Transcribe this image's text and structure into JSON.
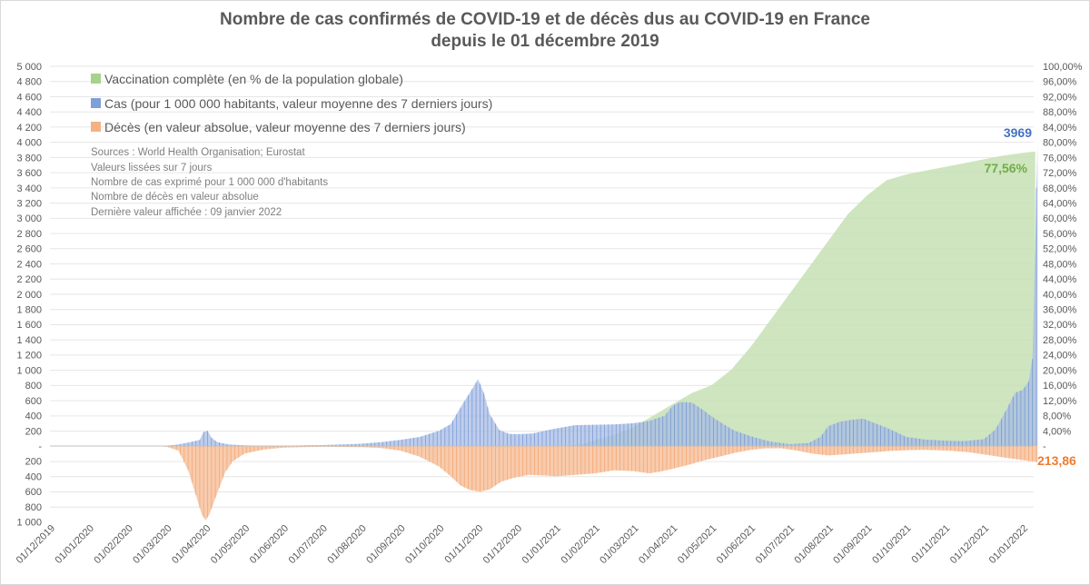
{
  "title": {
    "line1": "Nombre de cas confirmés de COVID-19 et de décès dus au COVID-19 en France",
    "line2": "depuis le 01 décembre 2019"
  },
  "legend": [
    {
      "label": "Vaccination complète (en % de la population globale)",
      "color": "#a9d18e"
    },
    {
      "label": "Cas (pour 1 000 000 habitants, valeur moyenne des 7 derniers jours)",
      "color": "#7f9fd9"
    },
    {
      "label": "Décès (en valeur absolue, valeur moyenne des 7 derniers jours)",
      "color": "#f4b183"
    }
  ],
  "notes": [
    "Sources : World Health Organisation; Eurostat",
    "Valeurs lissées sur 7 jours",
    "Nombre de cas exprimé pour 1 000 000 d'habitants",
    "Nombre de décès en valeur absolue",
    "Dernière valeur affichée : 09 janvier 2022"
  ],
  "last_values": {
    "cases": "3969",
    "vaccination": "77,56%",
    "deaths": "213,86"
  },
  "colors": {
    "vaccination_fill": "#c5e0b4",
    "cases_fill": "#a8bce6",
    "cases_line": "#4472c4",
    "deaths_fill": "#f8cbad",
    "deaths_line": "#ed7d31",
    "cases_label": "#4472c4",
    "vacc_label": "#70ad47",
    "deaths_label": "#ed7d31"
  },
  "chart_data": {
    "type": "area",
    "title": "Nombre de cas confirmés de COVID-19 et de décès dus au COVID-19 en France depuis le 01 décembre 2019",
    "x_labels": [
      "01/12/2019",
      "01/01/2020",
      "01/02/2020",
      "01/03/2020",
      "01/04/2020",
      "01/05/2020",
      "01/06/2020",
      "01/07/2020",
      "01/08/2020",
      "01/09/2020",
      "01/10/2020",
      "01/11/2020",
      "01/12/2020",
      "01/01/2021",
      "01/02/2021",
      "01/03/2021",
      "01/04/2021",
      "01/05/2021",
      "01/06/2021",
      "01/07/2021",
      "01/08/2021",
      "01/09/2021",
      "01/10/2021",
      "01/11/2021",
      "01/12/2021",
      "01/01/2022"
    ],
    "left_axis": {
      "positive_ticks": [
        "5 000",
        "4 800",
        "4 600",
        "4 400",
        "4 200",
        "4 000",
        "3 800",
        "3 600",
        "3 400",
        "3 200",
        "3 000",
        "2 800",
        "2 600",
        "2 400",
        "2 200",
        "2 000",
        "1 800",
        "1 600",
        "1 400",
        "1 200",
        "1 000",
        "800",
        "600",
        "400",
        "200",
        "-"
      ],
      "negative_ticks": [
        "200",
        "400",
        "600",
        "800",
        "1 000"
      ],
      "range": [
        -1000,
        5000
      ]
    },
    "right_axis": {
      "ticks": [
        "100,00%",
        "96,00%",
        "92,00%",
        "88,00%",
        "84,00%",
        "80,00%",
        "76,00%",
        "72,00%",
        "68,00%",
        "64,00%",
        "60,00%",
        "56,00%",
        "52,00%",
        "48,00%",
        "44,00%",
        "40,00%",
        "36,00%",
        "32,00%",
        "28,00%",
        "24,00%",
        "20,00%",
        "16,00%",
        "12,00%",
        "8,00%",
        "4,00%",
        "-"
      ],
      "range": [
        0,
        100
      ]
    },
    "series": [
      {
        "name": "Vaccination complète (en % de la population globale)",
        "axis": "right",
        "points": [
          [
            13.3,
            0
          ],
          [
            13.7,
            0.5
          ],
          [
            14.0,
            1.5
          ],
          [
            14.5,
            3
          ],
          [
            15.0,
            5
          ],
          [
            15.5,
            8
          ],
          [
            16.0,
            11
          ],
          [
            16.5,
            14
          ],
          [
            17.0,
            16
          ],
          [
            17.5,
            20
          ],
          [
            18.0,
            26
          ],
          [
            18.5,
            33
          ],
          [
            19.0,
            40
          ],
          [
            19.5,
            47
          ],
          [
            20.0,
            54
          ],
          [
            20.5,
            61
          ],
          [
            21.0,
            66
          ],
          [
            21.5,
            70
          ],
          [
            22.0,
            71.5
          ],
          [
            22.5,
            72.5
          ],
          [
            23.0,
            73.5
          ],
          [
            23.5,
            74.5
          ],
          [
            24.0,
            75.5
          ],
          [
            24.5,
            76.5
          ],
          [
            25.0,
            77.2
          ],
          [
            25.32,
            77.56
          ]
        ]
      },
      {
        "name": "Cas (pour 1 000 000 habitants, valeur moyenne des 7 derniers jours)",
        "axis": "left",
        "points": [
          [
            0,
            0
          ],
          [
            2.5,
            2
          ],
          [
            3.0,
            5
          ],
          [
            3.3,
            20
          ],
          [
            3.6,
            50
          ],
          [
            3.85,
            80
          ],
          [
            3.95,
            185
          ],
          [
            4.05,
            200
          ],
          [
            4.15,
            110
          ],
          [
            4.3,
            50
          ],
          [
            4.6,
            20
          ],
          [
            5.0,
            8
          ],
          [
            5.5,
            3
          ],
          [
            6.0,
            3
          ],
          [
            6.5,
            8
          ],
          [
            7.0,
            12
          ],
          [
            7.5,
            20
          ],
          [
            8.0,
            30
          ],
          [
            8.5,
            50
          ],
          [
            9.0,
            80
          ],
          [
            9.5,
            120
          ],
          [
            10.0,
            200
          ],
          [
            10.3,
            290
          ],
          [
            10.6,
            550
          ],
          [
            10.85,
            750
          ],
          [
            11.0,
            880
          ],
          [
            11.15,
            700
          ],
          [
            11.3,
            420
          ],
          [
            11.55,
            210
          ],
          [
            11.8,
            160
          ],
          [
            12.0,
            155
          ],
          [
            12.4,
            165
          ],
          [
            12.8,
            210
          ],
          [
            13.0,
            230
          ],
          [
            13.5,
            275
          ],
          [
            14.0,
            280
          ],
          [
            14.5,
            285
          ],
          [
            15.0,
            300
          ],
          [
            15.4,
            330
          ],
          [
            15.8,
            400
          ],
          [
            16.0,
            530
          ],
          [
            16.2,
            580
          ],
          [
            16.5,
            570
          ],
          [
            16.8,
            470
          ],
          [
            17.0,
            390
          ],
          [
            17.3,
            290
          ],
          [
            17.6,
            200
          ],
          [
            18.0,
            130
          ],
          [
            18.5,
            60
          ],
          [
            19.0,
            25
          ],
          [
            19.5,
            40
          ],
          [
            19.8,
            120
          ],
          [
            20.0,
            260
          ],
          [
            20.3,
            320
          ],
          [
            20.6,
            345
          ],
          [
            20.9,
            360
          ],
          [
            21.2,
            300
          ],
          [
            21.5,
            240
          ],
          [
            21.8,
            170
          ],
          [
            22.0,
            120
          ],
          [
            22.5,
            85
          ],
          [
            23.0,
            70
          ],
          [
            23.5,
            65
          ],
          [
            24.0,
            90
          ],
          [
            24.3,
            220
          ],
          [
            24.6,
            500
          ],
          [
            24.8,
            700
          ],
          [
            25.0,
            740
          ],
          [
            25.15,
            850
          ],
          [
            25.25,
            1150
          ],
          [
            25.28,
            1800
          ],
          [
            25.32,
            2600
          ],
          [
            25.35,
            3400
          ],
          [
            25.38,
            3969
          ]
        ]
      },
      {
        "name": "Décès (en valeur absolue, valeur moyenne des 7 derniers jours)",
        "axis": "left",
        "points": [
          [
            0,
            0
          ],
          [
            2.6,
            0
          ],
          [
            3.0,
            10
          ],
          [
            3.3,
            60
          ],
          [
            3.55,
            320
          ],
          [
            3.75,
            650
          ],
          [
            3.9,
            900
          ],
          [
            4.0,
            980
          ],
          [
            4.1,
            900
          ],
          [
            4.3,
            620
          ],
          [
            4.5,
            350
          ],
          [
            4.7,
            200
          ],
          [
            5.0,
            100
          ],
          [
            5.5,
            45
          ],
          [
            6.0,
            22
          ],
          [
            6.5,
            15
          ],
          [
            7.0,
            10
          ],
          [
            7.5,
            12
          ],
          [
            8.0,
            15
          ],
          [
            8.5,
            25
          ],
          [
            9.0,
            60
          ],
          [
            9.5,
            140
          ],
          [
            10.0,
            270
          ],
          [
            10.3,
            400
          ],
          [
            10.55,
            520
          ],
          [
            10.8,
            580
          ],
          [
            11.05,
            600
          ],
          [
            11.3,
            570
          ],
          [
            11.6,
            470
          ],
          [
            11.9,
            420
          ],
          [
            12.3,
            380
          ],
          [
            12.8,
            390
          ],
          [
            13.0,
            400
          ],
          [
            13.5,
            380
          ],
          [
            14.0,
            360
          ],
          [
            14.5,
            320
          ],
          [
            15.0,
            330
          ],
          [
            15.4,
            360
          ],
          [
            15.7,
            335
          ],
          [
            16.0,
            300
          ],
          [
            16.4,
            250
          ],
          [
            16.8,
            190
          ],
          [
            17.2,
            140
          ],
          [
            17.6,
            90
          ],
          [
            18.0,
            50
          ],
          [
            18.4,
            30
          ],
          [
            18.8,
            30
          ],
          [
            19.2,
            60
          ],
          [
            19.6,
            100
          ],
          [
            20.0,
            125
          ],
          [
            20.4,
            110
          ],
          [
            20.8,
            95
          ],
          [
            21.2,
            80
          ],
          [
            21.6,
            65
          ],
          [
            22.0,
            55
          ],
          [
            22.4,
            50
          ],
          [
            22.8,
            55
          ],
          [
            23.2,
            65
          ],
          [
            23.6,
            80
          ],
          [
            24.0,
            110
          ],
          [
            24.5,
            150
          ],
          [
            25.0,
            185
          ],
          [
            25.38,
            213.86
          ]
        ]
      }
    ]
  }
}
